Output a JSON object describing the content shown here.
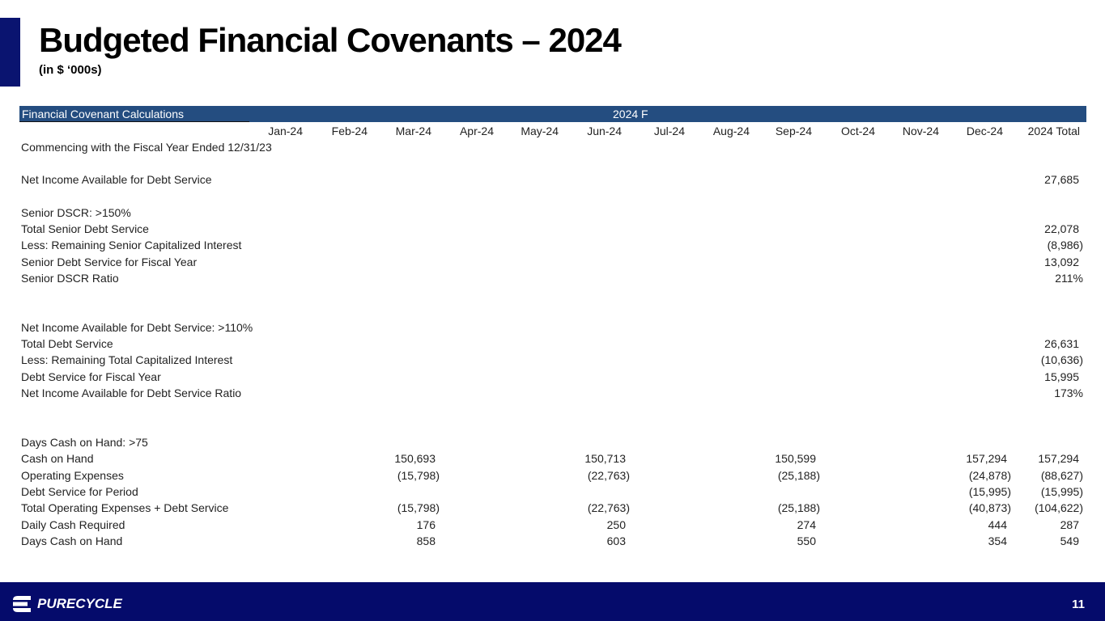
{
  "header": {
    "title": "Budgeted Financial Covenants – 2024",
    "subtitle": "(in $ ‘000s)"
  },
  "table": {
    "caption": "Financial Covenant Calculations",
    "period": "2024 F",
    "columns": [
      "Jan-24",
      "Feb-24",
      "Mar-24",
      "Apr-24",
      "May-24",
      "Jun-24",
      "Jul-24",
      "Aug-24",
      "Sep-24",
      "Oct-24",
      "Nov-24",
      "Dec-24",
      "2024 Total"
    ],
    "rows": [
      {
        "label": "Commencing with the Fiscal Year Ended 12/31/23"
      },
      {
        "label": "Net Income Available for Debt Service",
        "values": [
          null,
          null,
          null,
          null,
          null,
          null,
          null,
          null,
          null,
          null,
          null,
          null,
          "27,685"
        ]
      },
      {
        "label": "Senior DSCR: >150%"
      },
      {
        "label": "Total Senior Debt Service",
        "values": [
          null,
          null,
          null,
          null,
          null,
          null,
          null,
          null,
          null,
          null,
          null,
          null,
          "22,078"
        ]
      },
      {
        "label": "Less: Remaining Senior Capitalized Interest",
        "values": [
          null,
          null,
          null,
          null,
          null,
          null,
          null,
          null,
          null,
          null,
          null,
          null,
          "(8,986)"
        ]
      },
      {
        "label": "Senior Debt Service for Fiscal Year",
        "values": [
          null,
          null,
          null,
          null,
          null,
          null,
          null,
          null,
          null,
          null,
          null,
          null,
          "13,092"
        ]
      },
      {
        "label": "Senior DSCR Ratio",
        "values": [
          null,
          null,
          null,
          null,
          null,
          null,
          null,
          null,
          null,
          null,
          null,
          null,
          "211%"
        ]
      },
      {
        "label": "Net Income Available for Debt Service: >110%"
      },
      {
        "label": "Total Debt Service",
        "values": [
          null,
          null,
          null,
          null,
          null,
          null,
          null,
          null,
          null,
          null,
          null,
          null,
          "26,631"
        ]
      },
      {
        "label": "Less: Remaining Total Capitalized Interest",
        "values": [
          null,
          null,
          null,
          null,
          null,
          null,
          null,
          null,
          null,
          null,
          null,
          null,
          "(10,636)"
        ]
      },
      {
        "label": "Debt Service for Fiscal Year",
        "values": [
          null,
          null,
          null,
          null,
          null,
          null,
          null,
          null,
          null,
          null,
          null,
          null,
          "15,995"
        ]
      },
      {
        "label": "Net Income Available for Debt Service Ratio",
        "values": [
          null,
          null,
          null,
          null,
          null,
          null,
          null,
          null,
          null,
          null,
          null,
          null,
          "173%"
        ]
      },
      {
        "label": "Days Cash on Hand: >75"
      },
      {
        "label": "Cash on Hand",
        "values": [
          null,
          null,
          "150,693",
          null,
          null,
          "150,713",
          null,
          null,
          "150,599",
          null,
          null,
          "157,294",
          "157,294"
        ]
      },
      {
        "label": "Operating Expenses",
        "values": [
          null,
          null,
          "(15,798)",
          null,
          null,
          "(22,763)",
          null,
          null,
          "(25,188)",
          null,
          null,
          "(24,878)",
          "(88,627)"
        ]
      },
      {
        "label": "Debt Service for Period",
        "values": [
          null,
          null,
          null,
          null,
          null,
          null,
          null,
          null,
          null,
          null,
          null,
          "(15,995)",
          "(15,995)"
        ]
      },
      {
        "label": "Total Operating Expenses + Debt Service",
        "values": [
          null,
          null,
          "(15,798)",
          null,
          null,
          "(22,763)",
          null,
          null,
          "(25,188)",
          null,
          null,
          "(40,873)",
          "(104,622)"
        ]
      },
      {
        "label": "Daily Cash Required",
        "values": [
          null,
          null,
          "176",
          null,
          null,
          "250",
          null,
          null,
          "274",
          null,
          null,
          "444",
          "287"
        ]
      },
      {
        "label": "Days Cash on Hand",
        "values": [
          null,
          null,
          "858",
          null,
          null,
          "603",
          null,
          null,
          "550",
          null,
          null,
          "354",
          "549"
        ]
      }
    ]
  },
  "footer": {
    "logo": "PURECYCLE",
    "page": "11"
  }
}
